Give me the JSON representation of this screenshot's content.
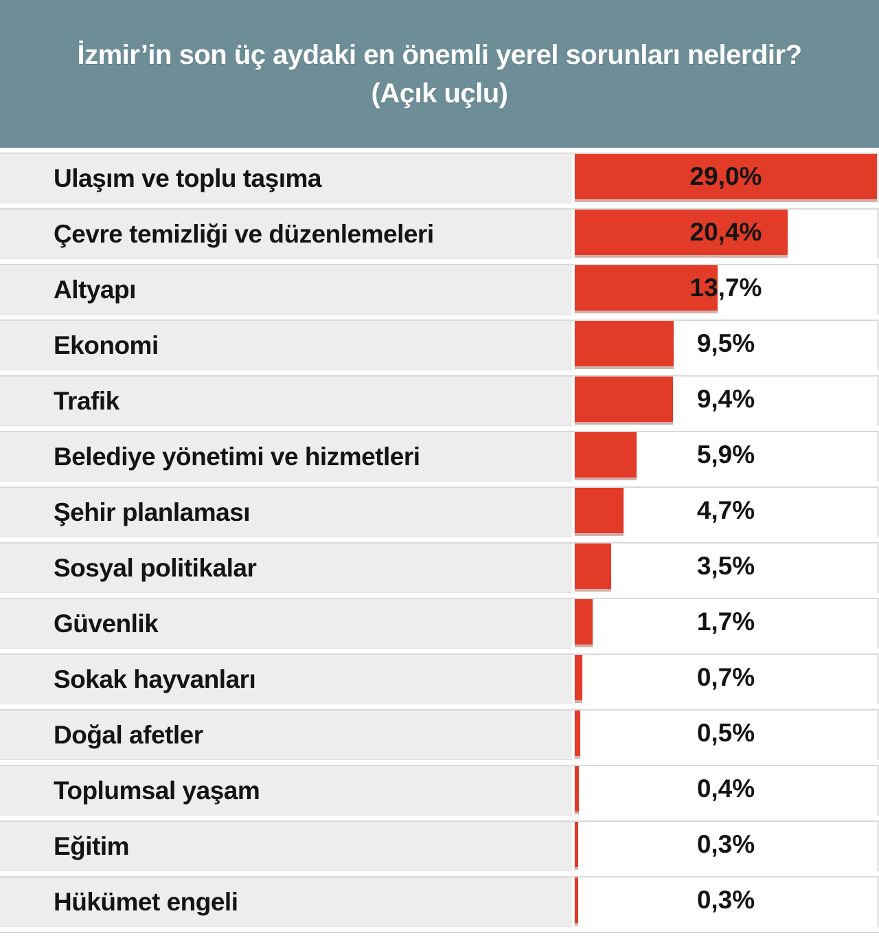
{
  "header": {
    "title_line1": "İzmir’in son üç aydaki en önemli yerel sorunları nelerdir?",
    "title_line2": "(Açık uçlu)"
  },
  "colors": {
    "header_bg": "#6d8d97",
    "bar_color": "#e23b28",
    "row_label_bg": "#ededed",
    "text_color": "#141414",
    "title_color": "#ffffff"
  },
  "chart_data": {
    "type": "bar",
    "orientation": "horizontal",
    "title": "İzmir’in son üç aydaki en önemli yerel sorunları nelerdir? (Açık uçlu)",
    "categories": [
      "Ulaşım ve toplu taşıma",
      "Çevre temizliği ve düzenlemeleri",
      "Altyapı",
      "Ekonomi",
      "Trafik",
      "Belediye yönetimi ve hizmetleri",
      "Şehir planlaması",
      "Sosyal politikalar",
      "Güvenlik",
      "Sokak hayvanları",
      "Doğal afetler",
      "Toplumsal yaşam",
      "Eğitim",
      "Hükümet engeli"
    ],
    "values": [
      29.0,
      20.4,
      13.7,
      9.5,
      9.4,
      5.9,
      4.7,
      3.5,
      1.7,
      0.7,
      0.5,
      0.4,
      0.3,
      0.3
    ],
    "value_labels": [
      "29,0%",
      "20,4%",
      "13,7%",
      "9,5%",
      "9,4%",
      "5,9%",
      "4,7%",
      "3,5%",
      "1,7%",
      "0,7%",
      "0,5%",
      "0,4%",
      "0,3%",
      "0,3%"
    ],
    "xlabel": "",
    "ylabel": "",
    "xlim": [
      0,
      29.0
    ],
    "grid": false,
    "legend": false,
    "value_label_position": "centered-in-bar-column",
    "decimal_separator": ","
  }
}
